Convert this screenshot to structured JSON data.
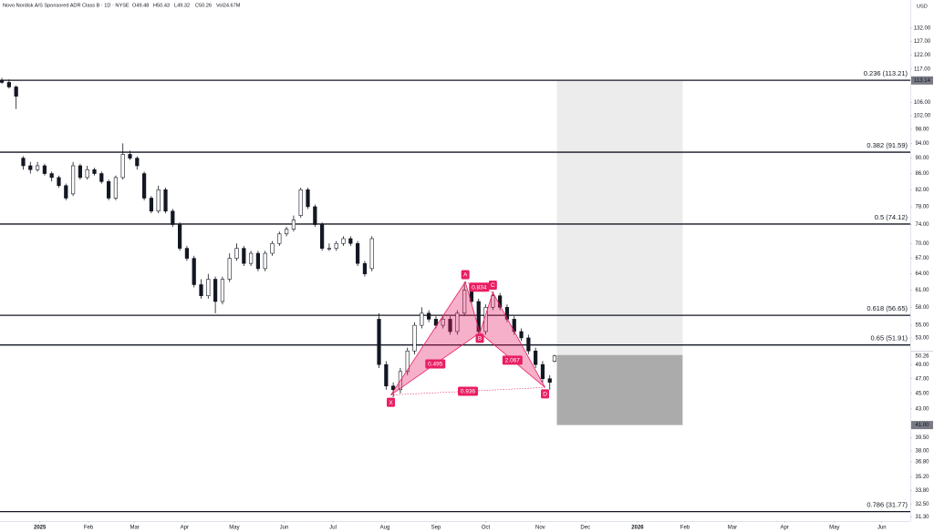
{
  "header": {
    "title": "Novo Nordisk A/S Sponsored ADR Class B · 1D · NYSE",
    "stats": [
      "O49.48",
      "H50.43",
      "L49.32",
      "C50.26",
      "Vol24.67M"
    ],
    "currency": "USD"
  },
  "chart_data": {
    "type": "candlestick",
    "log_scale": true,
    "up_color": "#ffffff",
    "down_color": "#131722",
    "outline_color": "#131722",
    "x": [
      0,
      3,
      6,
      9,
      12,
      15,
      18,
      21,
      24,
      27,
      30,
      33,
      36,
      39,
      42,
      45,
      48,
      51,
      54,
      57,
      60,
      63,
      66,
      69,
      72,
      75,
      78,
      81,
      84,
      87,
      90,
      93,
      96,
      99,
      102,
      105,
      108,
      111,
      114,
      117,
      120,
      123,
      126,
      129,
      132,
      135,
      138,
      141,
      144,
      147,
      150,
      153,
      156,
      159,
      162,
      165,
      168,
      171,
      174,
      177,
      180,
      183,
      186,
      189,
      192,
      195,
      198,
      201,
      204,
      207,
      210,
      213,
      216,
      219,
      222,
      225,
      228,
      231,
      233
    ],
    "open": [
      113,
      112.5,
      111,
      90,
      88,
      87,
      88,
      86,
      85,
      83,
      81,
      88,
      85,
      87,
      86,
      84,
      80,
      85,
      91,
      90,
      86,
      80,
      77,
      82,
      77,
      74,
      69,
      67,
      62,
      60,
      63,
      59,
      63,
      67,
      69,
      66,
      68,
      65,
      68,
      70,
      72,
      73,
      76,
      82,
      78,
      74,
      69,
      69,
      70,
      71,
      70,
      66,
      65,
      56,
      49,
      46,
      45.5,
      48,
      51,
      55,
      57,
      56,
      55,
      56,
      54,
      57,
      61,
      59,
      54,
      58,
      60,
      58,
      56,
      54,
      53,
      51,
      49,
      47,
      49.48
    ],
    "high": [
      114,
      113.5,
      111.5,
      90.5,
      89,
      89,
      88.5,
      86.5,
      85.5,
      83.5,
      89,
      88.5,
      88,
      87.5,
      86.5,
      84.5,
      85.5,
      94,
      92,
      90.5,
      86.5,
      80.5,
      83,
      82.5,
      77.5,
      74.5,
      69.5,
      67.5,
      63,
      64,
      63.5,
      63.5,
      68,
      70,
      69.5,
      68.5,
      68.5,
      68.5,
      70.5,
      72.5,
      73.5,
      76,
      82.5,
      82.5,
      78.5,
      74.5,
      70,
      70.5,
      71.5,
      71.5,
      70.5,
      66.5,
      71.5,
      57,
      49.5,
      46.5,
      48.5,
      51.5,
      55.5,
      58,
      57.5,
      56.5,
      56.5,
      56.5,
      57.5,
      62.5,
      61.5,
      59.5,
      58.5,
      60.8,
      60.5,
      58.5,
      56.5,
      54.5,
      53.5,
      51.5,
      49.5,
      47.5,
      50.43
    ],
    "low": [
      112,
      110.5,
      104,
      87,
      86,
      86.5,
      85.5,
      84,
      82.5,
      79.5,
      80.5,
      84.5,
      84.5,
      85.5,
      83.5,
      79.5,
      79.5,
      84.5,
      89.5,
      87,
      79.5,
      76.5,
      76.5,
      76.5,
      73.5,
      68.5,
      66.5,
      61.5,
      59.5,
      59.5,
      57,
      58.5,
      62.5,
      66.5,
      65.5,
      65.5,
      64.5,
      64.5,
      67.5,
      69.5,
      71.5,
      72.5,
      75.5,
      77.5,
      73.5,
      68.5,
      68.5,
      68.5,
      69.5,
      69.5,
      65.5,
      63.5,
      64.5,
      48.5,
      45.5,
      44.5,
      45,
      47.5,
      50.5,
      54.5,
      55.5,
      54.5,
      54.5,
      53.5,
      53.5,
      56.5,
      58.5,
      53.5,
      53.5,
      57.5,
      57.5,
      55.5,
      53.5,
      52.5,
      50.5,
      48.5,
      46.5,
      45.5,
      49.32
    ],
    "close": [
      112.5,
      111,
      108,
      88,
      87,
      88,
      86,
      85,
      83,
      80,
      88,
      85,
      87,
      86,
      84,
      80,
      85,
      91,
      90,
      88,
      80,
      77,
      82,
      77,
      74,
      69,
      67,
      62,
      60,
      63,
      59,
      63,
      67,
      69,
      66,
      68,
      65,
      68,
      70,
      72,
      73,
      75,
      82,
      78,
      74,
      69,
      69,
      70,
      71,
      70,
      66,
      64,
      71,
      49,
      46,
      45.5,
      48,
      51,
      55,
      57,
      56,
      55,
      56,
      54,
      57,
      61,
      59,
      54,
      58,
      60,
      58,
      56,
      54,
      53,
      51,
      49,
      47,
      46.5,
      50.26
    ],
    "xlim": [
      -0.8,
      383
    ],
    "ylim": [
      30.9,
      143.4
    ],
    "xticks": [
      {
        "value": 16,
        "label": "2025",
        "bold": true
      },
      {
        "value": 36.5,
        "label": "Feb"
      },
      {
        "value": 56,
        "label": "Mar"
      },
      {
        "value": 77,
        "label": "Apr"
      },
      {
        "value": 98,
        "label": "May"
      },
      {
        "value": 119,
        "label": "Jun"
      },
      {
        "value": 139.6,
        "label": "Jul"
      },
      {
        "value": 161.5,
        "label": "Aug"
      },
      {
        "value": 183,
        "label": "Sep"
      },
      {
        "value": 204,
        "label": "Oct"
      },
      {
        "value": 227,
        "label": "Nov"
      },
      {
        "value": 246,
        "label": "Dec"
      },
      {
        "value": 268,
        "label": "2026",
        "bold": true
      },
      {
        "value": 288,
        "label": "Feb"
      },
      {
        "value": 308,
        "label": "Mar"
      },
      {
        "value": 330,
        "label": "Apr"
      },
      {
        "value": 351,
        "label": "May"
      },
      {
        "value": 371,
        "label": "Jun"
      }
    ],
    "yticks": [
      {
        "value": 132,
        "label": "132.00"
      },
      {
        "value": 127,
        "label": "127.00"
      },
      {
        "value": 122,
        "label": "122.00"
      },
      {
        "value": 117,
        "label": "117.00"
      },
      {
        "value": 106,
        "label": "106.00"
      },
      {
        "value": 102,
        "label": "102.00"
      },
      {
        "value": 98,
        "label": "98.00"
      },
      {
        "value": 94,
        "label": "94.00"
      },
      {
        "value": 90,
        "label": "90.00"
      },
      {
        "value": 86,
        "label": "86.00"
      },
      {
        "value": 82,
        "label": "82.00"
      },
      {
        "value": 78,
        "label": "78.00"
      },
      {
        "value": 74,
        "label": "74.00"
      },
      {
        "value": 70,
        "label": "70.00"
      },
      {
        "value": 67,
        "label": "67.00"
      },
      {
        "value": 64,
        "label": "64.00"
      },
      {
        "value": 61,
        "label": "61.00"
      },
      {
        "value": 58,
        "label": "58.00"
      },
      {
        "value": 55,
        "label": "55.00"
      },
      {
        "value": 53,
        "label": "53.00"
      },
      {
        "value": 49,
        "label": "49.00"
      },
      {
        "value": 47,
        "label": "47.00"
      },
      {
        "value": 45,
        "label": "45.00"
      },
      {
        "value": 43,
        "label": "43.00"
      },
      {
        "value": 39.5,
        "label": "39.50"
      },
      {
        "value": 38,
        "label": "38.00"
      },
      {
        "value": 36.8,
        "label": "36.80"
      },
      {
        "value": 35.2,
        "label": "35.20"
      },
      {
        "value": 33.8,
        "label": "33.80"
      },
      {
        "value": 32.5,
        "label": "32.50"
      },
      {
        "value": 31.3,
        "label": "31.30"
      }
    ],
    "price_markers": [
      {
        "value": 113.14,
        "color": "#787b86",
        "text_color": "#ffffff"
      },
      {
        "value": 50.4,
        "label": "50.40",
        "color": "#d1d4dc",
        "text_color": "#131722"
      },
      {
        "value": 50.26,
        "color": "#ffffff",
        "text_color": "#131722"
      },
      {
        "value": 41,
        "label": "41.00",
        "color": "#787b86",
        "text_color": "#ffffff"
      }
    ],
    "fib_levels": [
      {
        "value": 113.21,
        "label": "0.236 (113.21)"
      },
      {
        "value": 91.59,
        "label": "0.382 (91.59)"
      },
      {
        "value": 74.12,
        "label": "0.5 (74.12)"
      },
      {
        "value": 56.65,
        "label": "0.618 (56.65)"
      },
      {
        "value": 51.91,
        "label": "0.65 (51.91)"
      },
      {
        "value": 31.77,
        "label": "0.786 (31.77)"
      }
    ],
    "boxes": [
      {
        "x": [
          234,
          287
        ],
        "y": [
          50.4,
          113.14
        ],
        "color": "#ececec"
      },
      {
        "x": [
          234,
          287
        ],
        "y": [
          41,
          50.4
        ],
        "color": "#ababab"
      }
    ],
    "pattern": {
      "color": "#e91e63",
      "points": [
        {
          "label": "X",
          "x": 164,
          "value": 44.8
        },
        {
          "label": "A",
          "x": 195.4,
          "value": 62.5
        },
        {
          "label": "B",
          "x": 201.5,
          "value": 53.8
        },
        {
          "label": "C",
          "x": 207,
          "value": 60.6
        },
        {
          "label": "D",
          "x": 229,
          "value": 45.8
        }
      ],
      "ratios": [
        0.495,
        0.834,
        2.067,
        0.936
      ]
    }
  }
}
